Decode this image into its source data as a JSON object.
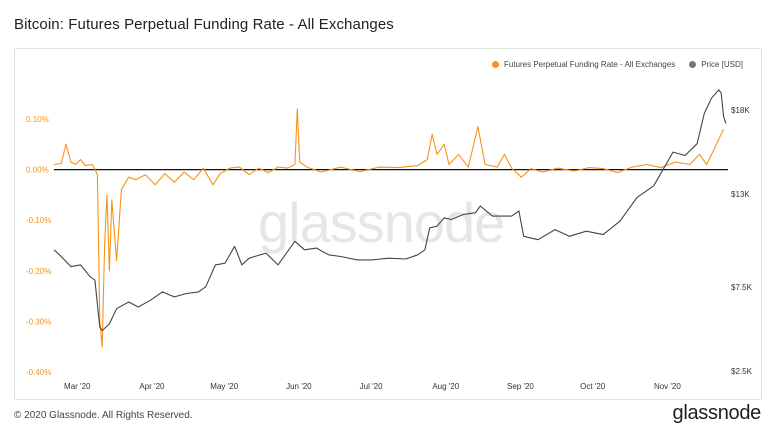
{
  "title": "Bitcoin: Futures Perpetual Funding Rate - All Exchanges",
  "watermark": "glassnode",
  "footer": {
    "copyright": "© 2020 Glassnode. All Rights Reserved.",
    "logo": "glassnode"
  },
  "chart_data": {
    "type": "line",
    "title": "Bitcoin: Futures Perpetual Funding Rate - All Exchanges",
    "legend_position": "top-right",
    "grid": false,
    "x_tick_labels": [
      "Mar '20",
      "Apr '20",
      "May '20",
      "Jun '20",
      "Jul '20",
      "Aug '20",
      "Sep '20",
      "Oct '20",
      "Nov '20"
    ],
    "x_range": [
      "2020-02-22",
      "2020-11-27"
    ],
    "left_axis": {
      "tick_labels": [
        "0.10%",
        "0.00%",
        "-0.10%",
        "-0.20%",
        "-0.30%",
        "-0.40%"
      ],
      "ticks": [
        0.1,
        0.0,
        -0.1,
        -0.2,
        -0.3,
        -0.4
      ],
      "range": [
        -0.4,
        0.2
      ],
      "unit": "%",
      "color": "#f7931a"
    },
    "right_axis": {
      "tick_labels": [
        "$18K",
        "$13K",
        "$7.5K",
        "$2.5K"
      ],
      "ticks": [
        18000,
        13000,
        7500,
        2500
      ],
      "range": [
        2500,
        19700
      ],
      "scale": "linear",
      "color": "#444444"
    },
    "series": [
      {
        "name": "Futures Perpetual Funding Rate - All Exchanges",
        "axis": "left",
        "color": "#f7931a",
        "points": [
          [
            "2020-02-22",
            0.01
          ],
          [
            "2020-02-25",
            0.012
          ],
          [
            "2020-02-27",
            0.05
          ],
          [
            "2020-02-29",
            0.015
          ],
          [
            "2020-03-02",
            0.01
          ],
          [
            "2020-03-04",
            0.02
          ],
          [
            "2020-03-06",
            0.008
          ],
          [
            "2020-03-09",
            0.01
          ],
          [
            "2020-03-11",
            -0.01
          ],
          [
            "2020-03-12",
            -0.3
          ],
          [
            "2020-03-13",
            -0.35
          ],
          [
            "2020-03-14",
            -0.15
          ],
          [
            "2020-03-15",
            -0.05
          ],
          [
            "2020-03-16",
            -0.2
          ],
          [
            "2020-03-17",
            -0.06
          ],
          [
            "2020-03-19",
            -0.18
          ],
          [
            "2020-03-21",
            -0.04
          ],
          [
            "2020-03-24",
            -0.015
          ],
          [
            "2020-03-27",
            -0.02
          ],
          [
            "2020-03-31",
            -0.01
          ],
          [
            "2020-04-04",
            -0.03
          ],
          [
            "2020-04-08",
            -0.008
          ],
          [
            "2020-04-12",
            -0.025
          ],
          [
            "2020-04-16",
            -0.005
          ],
          [
            "2020-04-20",
            -0.02
          ],
          [
            "2020-04-24",
            0.003
          ],
          [
            "2020-04-28",
            -0.03
          ],
          [
            "2020-05-01",
            -0.008
          ],
          [
            "2020-05-05",
            0.003
          ],
          [
            "2020-05-09",
            0.005
          ],
          [
            "2020-05-13",
            -0.01
          ],
          [
            "2020-05-17",
            0.003
          ],
          [
            "2020-05-21",
            -0.006
          ],
          [
            "2020-05-25",
            0.005
          ],
          [
            "2020-05-29",
            0.003
          ],
          [
            "2020-06-01",
            0.01
          ],
          [
            "2020-06-02",
            0.12
          ],
          [
            "2020-06-03",
            0.015
          ],
          [
            "2020-06-06",
            0.005
          ],
          [
            "2020-06-12",
            -0.005
          ],
          [
            "2020-06-20",
            0.005
          ],
          [
            "2020-06-28",
            -0.004
          ],
          [
            "2020-07-06",
            0.005
          ],
          [
            "2020-07-14",
            0.004
          ],
          [
            "2020-07-22",
            0.008
          ],
          [
            "2020-07-26",
            0.02
          ],
          [
            "2020-07-28",
            0.07
          ],
          [
            "2020-07-30",
            0.03
          ],
          [
            "2020-08-02",
            0.05
          ],
          [
            "2020-08-04",
            0.01
          ],
          [
            "2020-08-08",
            0.03
          ],
          [
            "2020-08-12",
            0.005
          ],
          [
            "2020-08-16",
            0.085
          ],
          [
            "2020-08-19",
            0.01
          ],
          [
            "2020-08-24",
            0.005
          ],
          [
            "2020-08-27",
            0.03
          ],
          [
            "2020-08-30",
            0.003
          ],
          [
            "2020-09-03",
            -0.015
          ],
          [
            "2020-09-07",
            0.002
          ],
          [
            "2020-09-12",
            -0.005
          ],
          [
            "2020-09-18",
            0.003
          ],
          [
            "2020-09-25",
            -0.003
          ],
          [
            "2020-10-01",
            0.004
          ],
          [
            "2020-10-07",
            0.002
          ],
          [
            "2020-10-13",
            -0.006
          ],
          [
            "2020-10-19",
            0.005
          ],
          [
            "2020-10-25",
            0.01
          ],
          [
            "2020-10-31",
            0.004
          ],
          [
            "2020-11-06",
            0.015
          ],
          [
            "2020-11-12",
            0.01
          ],
          [
            "2020-11-16",
            0.03
          ],
          [
            "2020-11-19",
            0.01
          ],
          [
            "2020-11-22",
            0.04
          ],
          [
            "2020-11-24",
            0.06
          ],
          [
            "2020-11-26",
            0.08
          ]
        ]
      },
      {
        "name": "Price [USD]",
        "axis": "right",
        "color": "#444444",
        "points": [
          [
            "2020-02-22",
            9700
          ],
          [
            "2020-02-25",
            9300
          ],
          [
            "2020-02-29",
            8700
          ],
          [
            "2020-03-04",
            8800
          ],
          [
            "2020-03-08",
            8100
          ],
          [
            "2020-03-10",
            7900
          ],
          [
            "2020-03-12",
            5100
          ],
          [
            "2020-03-13",
            4900
          ],
          [
            "2020-03-16",
            5300
          ],
          [
            "2020-03-19",
            6200
          ],
          [
            "2020-03-24",
            6600
          ],
          [
            "2020-03-28",
            6300
          ],
          [
            "2020-04-02",
            6700
          ],
          [
            "2020-04-07",
            7200
          ],
          [
            "2020-04-12",
            6900
          ],
          [
            "2020-04-17",
            7100
          ],
          [
            "2020-04-22",
            7200
          ],
          [
            "2020-04-25",
            7500
          ],
          [
            "2020-04-29",
            8800
          ],
          [
            "2020-05-03",
            8900
          ],
          [
            "2020-05-07",
            9900
          ],
          [
            "2020-05-10",
            8800
          ],
          [
            "2020-05-13",
            9200
          ],
          [
            "2020-05-20",
            9500
          ],
          [
            "2020-05-25",
            8800
          ],
          [
            "2020-06-01",
            10200
          ],
          [
            "2020-06-05",
            9700
          ],
          [
            "2020-06-10",
            9800
          ],
          [
            "2020-06-15",
            9400
          ],
          [
            "2020-06-20",
            9300
          ],
          [
            "2020-06-27",
            9100
          ],
          [
            "2020-07-03",
            9100
          ],
          [
            "2020-07-10",
            9200
          ],
          [
            "2020-07-17",
            9150
          ],
          [
            "2020-07-22",
            9400
          ],
          [
            "2020-07-25",
            9700
          ],
          [
            "2020-07-27",
            11000
          ],
          [
            "2020-07-30",
            11100
          ],
          [
            "2020-08-02",
            11600
          ],
          [
            "2020-08-05",
            11500
          ],
          [
            "2020-08-10",
            11800
          ],
          [
            "2020-08-15",
            11900
          ],
          [
            "2020-08-17",
            12300
          ],
          [
            "2020-08-22",
            11700
          ],
          [
            "2020-08-30",
            11700
          ],
          [
            "2020-09-02",
            12000
          ],
          [
            "2020-09-04",
            10500
          ],
          [
            "2020-09-10",
            10300
          ],
          [
            "2020-09-17",
            10900
          ],
          [
            "2020-09-23",
            10500
          ],
          [
            "2020-09-30",
            10800
          ],
          [
            "2020-10-07",
            10600
          ],
          [
            "2020-10-14",
            11400
          ],
          [
            "2020-10-21",
            12800
          ],
          [
            "2020-10-28",
            13500
          ],
          [
            "2020-11-05",
            15500
          ],
          [
            "2020-11-10",
            15300
          ],
          [
            "2020-11-15",
            16000
          ],
          [
            "2020-11-18",
            17800
          ],
          [
            "2020-11-21",
            18700
          ],
          [
            "2020-11-24",
            19200
          ],
          [
            "2020-11-25",
            19000
          ],
          [
            "2020-11-26",
            17600
          ],
          [
            "2020-11-27",
            17200
          ]
        ]
      }
    ]
  }
}
